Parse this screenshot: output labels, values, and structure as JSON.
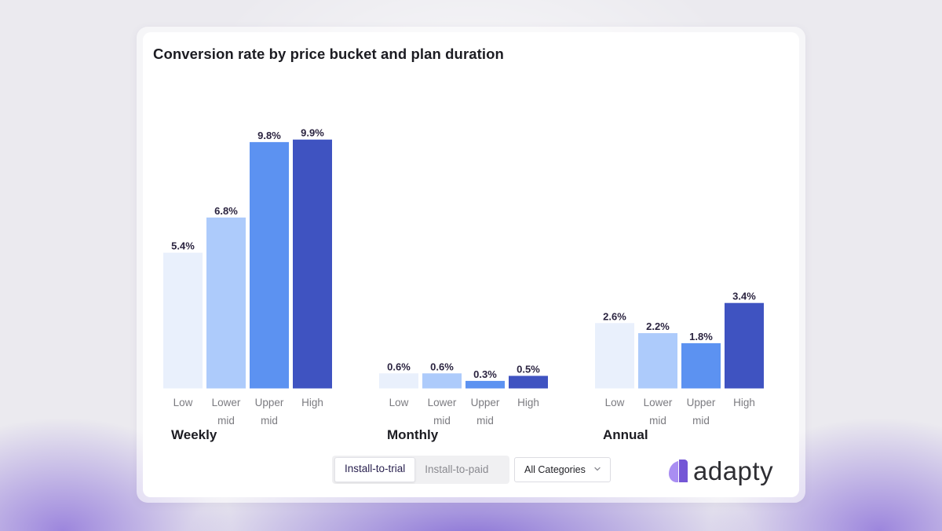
{
  "title": "Conversion rate by price bucket and plan duration",
  "chart_data": {
    "type": "bar",
    "title": "Conversion rate by price bucket and plan duration",
    "unit": "%",
    "groups": [
      "Weekly",
      "Monthly",
      "Annual"
    ],
    "categories": [
      [
        "Low"
      ],
      [
        "Lower",
        "mid"
      ],
      [
        "Upper",
        "mid"
      ],
      [
        "High"
      ]
    ],
    "category_names": [
      "Low",
      "Lower mid",
      "Upper mid",
      "High"
    ],
    "colors": [
      "#e9f0fc",
      "#adcbfb",
      "#5c92f1",
      "#3f53c1"
    ],
    "series": [
      {
        "name": "Weekly",
        "values": [
          5.4,
          6.8,
          9.8,
          9.9
        ],
        "labels": [
          "5.4%",
          "6.8%",
          "9.8%",
          "9.9%"
        ]
      },
      {
        "name": "Monthly",
        "values": [
          0.6,
          0.6,
          0.3,
          0.5
        ],
        "labels": [
          "0.6%",
          "0.6%",
          "0.3%",
          "0.5%"
        ]
      },
      {
        "name": "Annual",
        "values": [
          2.6,
          2.2,
          1.8,
          3.4
        ],
        "labels": [
          "2.6%",
          "2.2%",
          "1.8%",
          "3.4%"
        ]
      }
    ],
    "ylim": [
      0,
      10
    ],
    "grid": false,
    "legend": "none"
  },
  "controls": {
    "toggle": {
      "options": [
        "Install-to-trial",
        "Install-to-paid"
      ],
      "active": "Install-to-trial"
    },
    "dropdown": {
      "value": "All Categories",
      "icon": "chevron-down-icon"
    }
  },
  "brand": {
    "name": "adapty",
    "logo_icon": "adapty-logo-icon",
    "logo_colors": [
      "#a98ef2",
      "#7456d6"
    ]
  }
}
